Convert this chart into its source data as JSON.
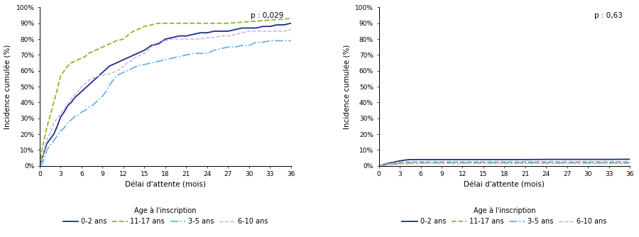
{
  "left_title": "p : 0,029",
  "right_title": "p : 0,63",
  "ylabel": "Incidence cumulée (%)",
  "xlabel": "Délai d'attente (mois)",
  "legend_title": "Age à l'inscription",
  "legend_labels": [
    "0-2 ans",
    "11-17 ans",
    "3-5 ans",
    "6-10 ans"
  ],
  "colors": {
    "0-2 ans": "#1e2d8c",
    "11-17 ans": "#8db526",
    "3-5 ans": "#6ab4e8",
    "6-10 ans": "#c8a8e0"
  },
  "linestyles": {
    "0-2 ans": "solid",
    "11-17 ans": "dashed",
    "3-5 ans": "dashdot",
    "6-10 ans": "dashed"
  },
  "linewidths": {
    "0-2 ans": 1.3,
    "11-17 ans": 1.3,
    "3-5 ans": 1.3,
    "6-10 ans": 1.0
  },
  "left": {
    "0-2 ans": [
      0,
      0,
      0.3,
      4,
      0.7,
      10,
      1,
      14,
      1.5,
      17,
      2,
      20,
      2.5,
      25,
      3,
      31,
      3.5,
      34,
      4,
      38,
      4.5,
      40,
      5,
      43,
      5.5,
      45,
      6,
      47,
      6.5,
      49,
      7,
      51,
      7.5,
      53,
      8,
      55,
      9,
      59,
      9.5,
      61,
      10,
      63,
      10.5,
      64,
      11,
      65,
      12,
      67,
      13,
      69,
      14,
      71,
      15,
      73,
      16,
      76,
      17,
      77,
      18,
      80,
      19,
      81,
      20,
      82,
      21,
      82,
      22,
      83,
      23,
      84,
      24,
      84,
      25,
      85,
      26,
      85,
      27,
      85,
      28,
      86,
      29,
      87,
      30,
      87,
      31,
      87,
      32,
      88,
      33,
      88,
      34,
      89,
      35,
      89,
      36,
      90
    ],
    "11-17 ans": [
      0,
      0,
      0.3,
      10,
      0.7,
      18,
      1,
      24,
      1.5,
      32,
      2,
      40,
      2.5,
      48,
      3,
      57,
      3.5,
      60,
      4,
      63,
      4.5,
      65,
      5,
      66,
      5.5,
      67,
      6,
      68,
      6.5,
      69,
      7,
      71,
      7.5,
      72,
      8,
      73,
      8.5,
      74,
      9,
      75,
      9.5,
      76,
      10,
      77,
      10.5,
      78,
      11,
      79,
      12,
      80,
      13,
      84,
      14,
      86,
      15,
      88,
      16,
      89,
      17,
      90,
      18,
      90,
      19,
      90,
      20,
      90,
      21,
      90,
      24,
      90,
      27,
      90,
      30,
      91,
      33,
      92,
      36,
      93
    ],
    "3-5 ans": [
      0,
      0,
      0.3,
      1,
      0.7,
      5,
      1,
      10,
      1.5,
      13,
      2,
      16,
      2.5,
      19,
      3,
      22,
      3.5,
      24,
      4,
      27,
      4.5,
      29,
      5,
      31,
      5.5,
      32,
      6,
      34,
      6.5,
      35,
      7,
      37,
      7.5,
      38,
      8,
      40,
      8.5,
      42,
      9,
      44,
      9.5,
      47,
      10,
      51,
      10.5,
      54,
      11,
      57,
      11.5,
      58,
      12,
      59,
      12.5,
      60,
      13,
      61,
      13.5,
      62,
      14,
      63,
      15,
      64,
      16,
      65,
      17,
      66,
      18,
      67,
      19,
      68,
      20,
      69,
      21,
      70,
      22,
      71,
      23,
      71,
      24,
      71,
      25,
      73,
      26,
      74,
      27,
      75,
      28,
      75,
      29,
      76,
      30,
      76,
      31,
      78,
      32,
      78,
      33,
      79,
      34,
      79,
      35,
      79,
      36,
      79
    ],
    "6-10 ans": [
      0,
      0,
      0.3,
      4,
      0.7,
      11,
      1,
      16,
      1.5,
      21,
      2,
      27,
      2.5,
      30,
      3,
      33,
      3.5,
      36,
      4,
      39,
      4.5,
      42,
      5,
      45,
      5.5,
      47,
      6,
      50,
      6.5,
      52,
      7,
      54,
      7.5,
      55,
      8,
      56,
      8.5,
      57,
      9,
      57,
      9.5,
      58,
      10,
      58,
      10.5,
      59,
      11,
      60,
      11.5,
      61,
      12,
      63,
      12.5,
      65,
      13,
      66,
      13.5,
      68,
      14,
      69,
      14.5,
      70,
      15,
      71,
      16,
      75,
      16.5,
      77,
      17,
      78,
      17.5,
      79,
      18,
      79,
      19,
      80,
      20,
      80,
      21,
      80,
      22,
      80,
      23,
      80,
      24,
      81,
      25,
      81,
      26,
      82,
      27,
      82,
      28,
      83,
      29,
      84,
      30,
      85,
      31,
      85,
      32,
      85,
      33,
      85,
      34,
      85,
      35,
      85,
      36,
      86
    ]
  },
  "right": {
    "0-2 ans": [
      0,
      0,
      0.3,
      0.3,
      0.7,
      0.8,
      1,
      1.2,
      1.5,
      1.8,
      2,
      2.2,
      2.5,
      2.7,
      3,
      3.2,
      3.5,
      3.5,
      4,
      3.8,
      4.5,
      4.0,
      5,
      4.0,
      6,
      4.0,
      9,
      4.0,
      12,
      4.0,
      15,
      4.0,
      18,
      4.0,
      21,
      4.0,
      24,
      4.1,
      27,
      4.1,
      30,
      4.1,
      33,
      4.1,
      36,
      4.2
    ],
    "11-17 ans": [
      0,
      0,
      0.3,
      0.2,
      0.7,
      0.7,
      1,
      1.0,
      1.5,
      1.5,
      2,
      1.8,
      2.5,
      2.0,
      3,
      2.2,
      3.5,
      2.3,
      4,
      2.4,
      4.5,
      2.4,
      5,
      2.5,
      6,
      2.5,
      9,
      2.5,
      12,
      2.5,
      15,
      2.5,
      18,
      2.5,
      21,
      2.5,
      24,
      2.5,
      27,
      2.5,
      30,
      2.5,
      33,
      2.5,
      36,
      2.5
    ],
    "3-5 ans": [
      0,
      0,
      0.3,
      0.1,
      0.7,
      0.4,
      1,
      0.6,
      1.5,
      0.9,
      2,
      1.1,
      2.5,
      1.3,
      3,
      1.5,
      3.5,
      1.6,
      4,
      1.7,
      4.5,
      1.8,
      5,
      1.9,
      6,
      2.0,
      9,
      2.0,
      12,
      2.0,
      15,
      2.0,
      18,
      2.0,
      21,
      2.0,
      24,
      2.0,
      27,
      2.0,
      30,
      2.0,
      33,
      2.0,
      36,
      2.0
    ],
    "6-10 ans": [
      0,
      0,
      0.3,
      0.1,
      0.7,
      0.2,
      1,
      0.4,
      1.5,
      0.6,
      2,
      0.8,
      2.5,
      0.9,
      3,
      1.1,
      3.5,
      1.2,
      4,
      1.3,
      4.5,
      1.4,
      5,
      1.5,
      6,
      1.5,
      9,
      1.5,
      12,
      1.5,
      15,
      1.5,
      18,
      1.5,
      21,
      1.5,
      24,
      1.5,
      27,
      1.5,
      30,
      1.5,
      33,
      1.5,
      36,
      1.5
    ]
  },
  "xticks": [
    0,
    3,
    6,
    9,
    12,
    15,
    18,
    21,
    24,
    27,
    30,
    33,
    36
  ],
  "left_yticks": [
    0,
    10,
    20,
    30,
    40,
    50,
    60,
    70,
    80,
    90,
    100
  ],
  "right_yticks": [
    0,
    10,
    20,
    30,
    40,
    50,
    60,
    70,
    80,
    90,
    100
  ],
  "ylim_left": [
    0,
    100
  ],
  "ylim_right": [
    0,
    100
  ],
  "fontsize_ticks": 6.5,
  "fontsize_label": 7.5,
  "fontsize_legend": 7,
  "fontsize_pval": 7.5,
  "bg_color": "#ffffff"
}
